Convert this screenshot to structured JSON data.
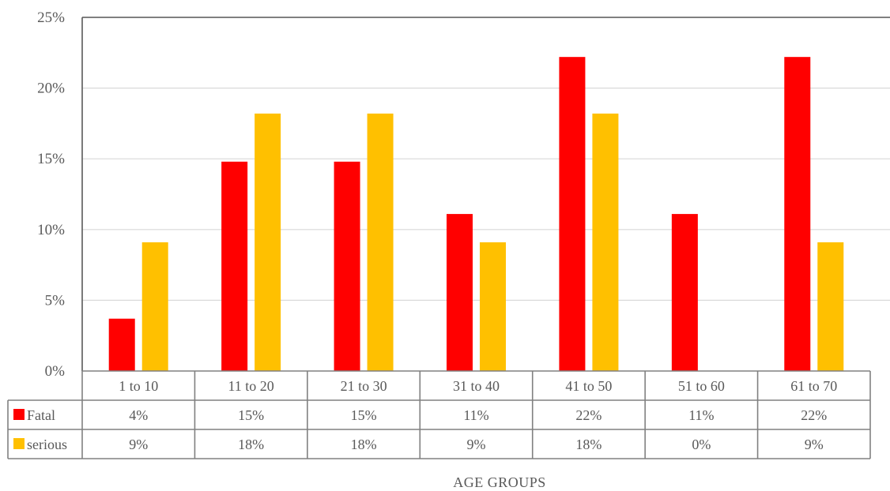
{
  "chart_data": {
    "type": "bar",
    "categories": [
      "1 to 10",
      "11 to 20",
      "21 to 30",
      "31 to 40",
      "41 to 50",
      "51 to 60",
      "61 to 70"
    ],
    "series": [
      {
        "name": "Fatal",
        "color": "#ff0000",
        "values": [
          3.7,
          14.8,
          14.8,
          11.1,
          22.2,
          11.1,
          22.2
        ],
        "labels": [
          "4%",
          "15%",
          "15%",
          "11%",
          "22%",
          "11%",
          "22%"
        ]
      },
      {
        "name": "serious",
        "color": "#ffc000",
        "values": [
          9.1,
          18.2,
          18.2,
          9.1,
          18.2,
          0,
          9.1
        ],
        "labels": [
          "9%",
          "18%",
          "18%",
          "9%",
          "18%",
          "0%",
          "9%"
        ]
      }
    ],
    "yticks": [
      "0%",
      "5%",
      "10%",
      "15%",
      "20%",
      "25%"
    ],
    "ylim": [
      0,
      25
    ],
    "xlabel": "AGE GROUPS",
    "ylabel": "",
    "grid": true,
    "legend": "data-table"
  }
}
